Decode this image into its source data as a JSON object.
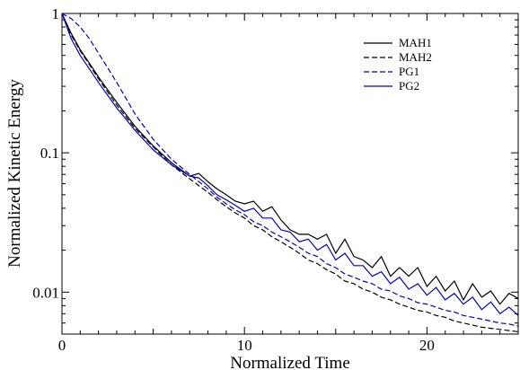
{
  "chart_data": {
    "type": "line",
    "xlabel": "Normalized Time",
    "ylabel": "Normalized Kinetic Energy",
    "xlim": [
      0,
      25
    ],
    "ylim": [
      0.005,
      1
    ],
    "y_scale": "log",
    "grid": false,
    "legend_position": "top-right",
    "x_ticks": [
      {
        "value": 0,
        "label": "0"
      },
      {
        "value": 10,
        "label": "10"
      },
      {
        "value": 20,
        "label": "20"
      }
    ],
    "y_ticks": [
      {
        "value": 1,
        "label": "1"
      },
      {
        "value": 0.1,
        "label": "0.1"
      },
      {
        "value": 0.01,
        "label": "0.01"
      }
    ],
    "series": [
      {
        "name": "MAH1",
        "color": "#000000",
        "dash": "solid",
        "x": [
          0,
          0.5,
          1,
          1.5,
          2,
          3,
          4,
          5,
          6,
          7,
          7.5,
          8,
          8.5,
          9,
          9.5,
          10,
          10.5,
          11,
          11.5,
          12,
          12.5,
          13,
          13.5,
          14,
          14.5,
          15,
          15.5,
          16,
          16.5,
          17,
          17.5,
          18,
          18.5,
          19,
          19.5,
          20,
          20.5,
          21,
          21.5,
          22,
          22.5,
          23,
          23.5,
          24,
          24.5,
          25
        ],
        "y": [
          1,
          0.72,
          0.55,
          0.44,
          0.35,
          0.23,
          0.155,
          0.112,
          0.085,
          0.068,
          0.071,
          0.062,
          0.055,
          0.05,
          0.045,
          0.043,
          0.045,
          0.038,
          0.041,
          0.033,
          0.028,
          0.026,
          0.026,
          0.024,
          0.026,
          0.019,
          0.024,
          0.018,
          0.017,
          0.015,
          0.018,
          0.013,
          0.015,
          0.013,
          0.015,
          0.011,
          0.013,
          0.0102,
          0.012,
          0.0088,
          0.0115,
          0.0092,
          0.0102,
          0.0082,
          0.0098,
          0.009
        ]
      },
      {
        "name": "MAH2",
        "color": "#000000",
        "dash": "dashed",
        "x": [
          0,
          0.5,
          1,
          1.5,
          2,
          3,
          4,
          5,
          6,
          7,
          8,
          8.5,
          9,
          9.5,
          10,
          10.5,
          11,
          11.5,
          12,
          12.5,
          13,
          13.5,
          14,
          14.5,
          15,
          15.5,
          16,
          16.5,
          17,
          17.5,
          18,
          18.5,
          19,
          19.5,
          20,
          20.5,
          21,
          21.5,
          22,
          22.5,
          23,
          23.5,
          24,
          24.5,
          25
        ],
        "y": [
          1,
          0.7,
          0.54,
          0.43,
          0.34,
          0.22,
          0.15,
          0.11,
          0.082,
          0.065,
          0.052,
          0.046,
          0.041,
          0.037,
          0.034,
          0.03,
          0.028,
          0.025,
          0.023,
          0.021,
          0.019,
          0.017,
          0.016,
          0.0145,
          0.0135,
          0.012,
          0.0115,
          0.0105,
          0.01,
          0.0092,
          0.0088,
          0.0082,
          0.0078,
          0.0074,
          0.0072,
          0.0068,
          0.0066,
          0.0062,
          0.006,
          0.0058,
          0.0056,
          0.0055,
          0.0054,
          0.0053,
          0.0052
        ]
      },
      {
        "name": "PG1",
        "color": "#0000cc",
        "dash": "dashed",
        "x": [
          0,
          0.5,
          1,
          1.5,
          2,
          3,
          4,
          5,
          6,
          7,
          8,
          8.5,
          9,
          9.5,
          10,
          10.5,
          11,
          11.5,
          12,
          12.5,
          13,
          13.5,
          14,
          14.5,
          15,
          15.5,
          16,
          16.5,
          17,
          17.5,
          18,
          18.5,
          19,
          19.5,
          20,
          20.5,
          21,
          21.5,
          22,
          22.5,
          23,
          23.5,
          24,
          24.5,
          25
        ],
        "y": [
          1,
          0.92,
          0.8,
          0.66,
          0.52,
          0.32,
          0.19,
          0.125,
          0.09,
          0.07,
          0.055,
          0.048,
          0.043,
          0.039,
          0.036,
          0.032,
          0.03,
          0.027,
          0.025,
          0.023,
          0.021,
          0.019,
          0.018,
          0.016,
          0.015,
          0.0135,
          0.0128,
          0.012,
          0.0115,
          0.0105,
          0.0102,
          0.0094,
          0.009,
          0.0084,
          0.0082,
          0.0078,
          0.0074,
          0.0072,
          0.0068,
          0.0066,
          0.0064,
          0.0062,
          0.006,
          0.0059,
          0.0057
        ]
      },
      {
        "name": "PG2",
        "color": "#0000cc",
        "dash": "solid",
        "x": [
          0,
          0.5,
          1,
          1.5,
          2,
          3,
          4,
          5,
          6,
          7,
          7.5,
          8,
          8.5,
          9,
          9.5,
          10,
          10.5,
          11,
          11.5,
          12,
          12.5,
          13,
          13.5,
          14,
          14.5,
          15,
          15.5,
          16,
          16.5,
          17,
          17.5,
          18,
          18.5,
          19,
          19.5,
          20,
          20.5,
          21,
          21.5,
          22,
          22.5,
          23,
          23.5,
          24,
          24.5,
          25
        ],
        "y": [
          1,
          0.66,
          0.5,
          0.4,
          0.32,
          0.21,
          0.145,
          0.105,
          0.082,
          0.068,
          0.066,
          0.058,
          0.05,
          0.046,
          0.042,
          0.038,
          0.04,
          0.034,
          0.034,
          0.028,
          0.027,
          0.023,
          0.024,
          0.02,
          0.022,
          0.017,
          0.019,
          0.0155,
          0.0155,
          0.013,
          0.014,
          0.0115,
          0.0128,
          0.0105,
          0.0115,
          0.0095,
          0.0108,
          0.0088,
          0.0098,
          0.0082,
          0.0092,
          0.0075,
          0.0085,
          0.007,
          0.0078,
          0.0068
        ]
      }
    ]
  }
}
